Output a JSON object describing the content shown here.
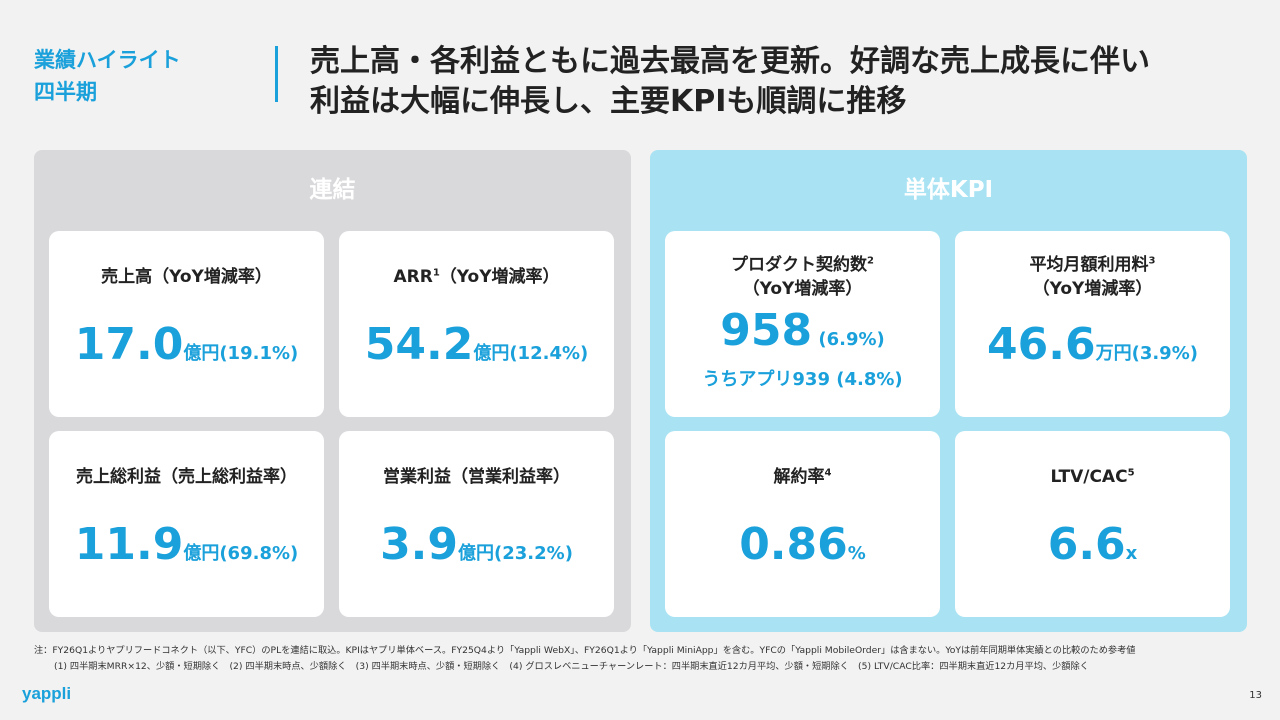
{
  "header": {
    "section_line1": "業績ハイライト",
    "section_line2": "四半期",
    "headline_line1": "売上高・各利益ともに過去最高を更新。好調な売上成長に伴い",
    "headline_line2": "利益は大幅に伸長し、主要KPIも順調に推移"
  },
  "left_panel": {
    "title": "連結",
    "cards": [
      {
        "label": "売上高（YoY増減率）",
        "sup": "",
        "value": "17.0",
        "unit": "億円(19.1%)"
      },
      {
        "label": "ARR",
        "sup": "1",
        "label_suffix": "（YoY増減率）",
        "value": "54.2",
        "unit": "億円(12.4%)"
      },
      {
        "label": "売上総利益（売上総利益率）",
        "sup": "",
        "value": "11.9",
        "unit": "億円(69.8%)"
      },
      {
        "label": "営業利益（営業利益率）",
        "sup": "",
        "value": "3.9",
        "unit": "億円(23.2%)"
      }
    ]
  },
  "right_panel": {
    "title": "単体KPI",
    "cards": [
      {
        "label_line1": "プロダクト契約数",
        "sup": "2",
        "label_line2": "（YoY増減率）",
        "value": "958",
        "unit": " (6.9%)",
        "sub": "うちアプリ939 (4.8%)"
      },
      {
        "label_line1": "平均月額利用料",
        "sup": "3",
        "label_line2": "（YoY増減率）",
        "value": "46.6",
        "unit": "万円(3.9%)"
      },
      {
        "label": "解約率",
        "sup": "4",
        "value": "0.86",
        "unit": "%"
      },
      {
        "label": "LTV/CAC",
        "sup": "5",
        "value": "6.6",
        "unit": "x"
      }
    ]
  },
  "footer": {
    "note_line1": "注：FY26Q1よりヤプリフードコネクト（以下、YFC）のPLを連結に取込。KPIはヤプリ単体ベース。FY25Q4より「Yappli WebX」、FY26Q1より「Yappli MiniApp」を含む。YFCの「Yappli MobileOrder」は含まない。YoYは前年同期単体実績との比較のため参考値",
    "note_line2": "(1) 四半期末MRR×12、少額・短期除く　(2) 四半期末時点、少額除く　(3) 四半期末時点、少額・短期除く　(4) グロスレベニューチャーンレート：四半期末直近12カ月平均、少額・短期除く　(5) LTV/CAC比率：四半期末直近12カ月平均、少額除く",
    "logo": "yappli",
    "page_number": "13"
  }
}
